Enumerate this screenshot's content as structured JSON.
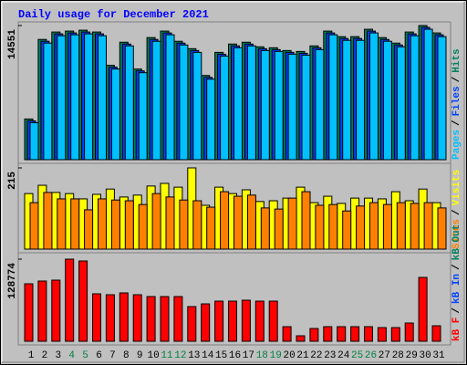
{
  "chart_data": [
    {
      "type": "bar",
      "title": "Daily usage for December 2021",
      "ylim": [
        0,
        14551
      ],
      "yticks": [
        14551
      ],
      "legend_separator": "/",
      "series": [
        {
          "name": "Hits",
          "color": "#00805c",
          "values": [
            4415,
            13046,
            13848,
            13949,
            14049,
            13848,
            10236,
            12744,
            9834,
            13246,
            13949,
            12845,
            12042,
            9132,
            11641,
            12544,
            12744,
            12243,
            12142,
            11841,
            11741,
            12343,
            13949,
            13347,
            13347,
            14149,
            13246,
            12644,
            13848,
            14551,
            13748
          ]
        },
        {
          "name": "Files",
          "color": "#0040ff",
          "values": [
            4215,
            12846,
            13648,
            13749,
            13849,
            13648,
            10036,
            12544,
            9634,
            13046,
            13749,
            12645,
            11842,
            8932,
            11441,
            12344,
            12544,
            12043,
            11942,
            11641,
            11541,
            12143,
            13749,
            13147,
            13147,
            13949,
            13046,
            12444,
            13648,
            14351,
            13548
          ]
        },
        {
          "name": "Pages",
          "color": "#00c0ff",
          "values": [
            4015,
            12646,
            13448,
            13549,
            13649,
            13448,
            9836,
            12344,
            9434,
            12846,
            13549,
            12445,
            11642,
            8732,
            11241,
            12144,
            12344,
            11843,
            11742,
            11441,
            11341,
            11943,
            13549,
            12947,
            12947,
            13749,
            12846,
            12244,
            13448,
            14151,
            13348
          ]
        }
      ]
    },
    {
      "type": "bar",
      "ylim": [
        0,
        215
      ],
      "yticks": [
        215
      ],
      "legend_separator": "/",
      "series": [
        {
          "name": "Visits",
          "color": "#ffff00",
          "values": [
            147,
            169,
            150,
            147,
            133,
            145,
            159,
            138,
            143,
            167,
            174,
            164,
            215,
            116,
            164,
            147,
            157,
            126,
            128,
            135,
            164,
            123,
            140,
            121,
            135,
            135,
            133,
            152,
            128,
            159,
            123
          ]
        },
        {
          "name": "Sites",
          "color": "#ff8000",
          "values": [
            123,
            150,
            133,
            133,
            104,
            133,
            130,
            128,
            118,
            147,
            138,
            130,
            128,
            111,
            152,
            140,
            143,
            109,
            106,
            135,
            152,
            116,
            118,
            101,
            114,
            123,
            118,
            123,
            121,
            123,
            109
          ]
        }
      ]
    },
    {
      "type": "bar",
      "ylim": [
        0,
        128774
      ],
      "yticks": [
        128774
      ],
      "legend_separator": "/",
      "categories": [
        "1",
        "2",
        "3",
        "4",
        "5",
        "6",
        "7",
        "8",
        "9",
        "10",
        "11",
        "12",
        "13",
        "14",
        "15",
        "16",
        "17",
        "18",
        "19",
        "20",
        "21",
        "22",
        "23",
        "24",
        "25",
        "26",
        "27",
        "28",
        "29",
        "30",
        "31"
      ],
      "category_colors": [
        "#000000",
        "#000000",
        "#000000",
        "#008040",
        "#008040",
        "#000000",
        "#000000",
        "#000000",
        "#000000",
        "#000000",
        "#008040",
        "#008040",
        "#000000",
        "#000000",
        "#000000",
        "#000000",
        "#000000",
        "#008040",
        "#008040",
        "#000000",
        "#000000",
        "#000000",
        "#000000",
        "#000000",
        "#008040",
        "#008040",
        "#000000",
        "#000000",
        "#000000",
        "#000000",
        "#000000"
      ],
      "series": [
        {
          "name": "kB F",
          "color": "#ff0000",
          "values": [
            90140,
            94433,
            95864,
            128774,
            125910,
            74402,
            72971,
            75832,
            72971,
            70109,
            70109,
            70109,
            54370,
            58663,
            62955,
            62955,
            64386,
            62955,
            62955,
            22893,
            8585,
            20031,
            22893,
            22893,
            22893,
            22893,
            21462,
            21462,
            28616,
            100156,
            24324
          ]
        }
      ],
      "legend_only": [
        {
          "name": "kB In",
          "color": "#0040ff"
        },
        {
          "name": "kB Out",
          "color": "#00805c"
        }
      ]
    }
  ]
}
